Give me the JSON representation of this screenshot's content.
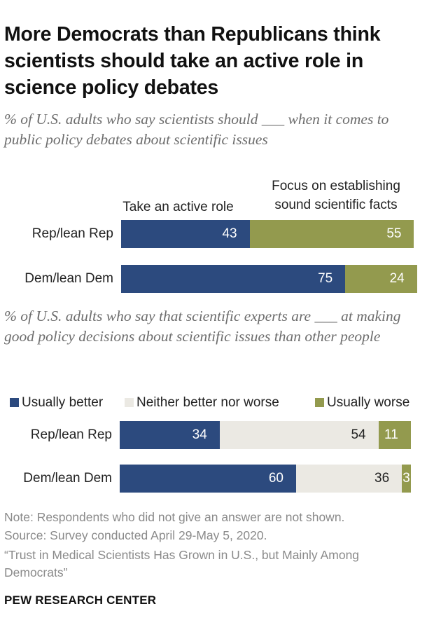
{
  "title": "More Democrats than Republicans think scientists should take an active role in science policy debates",
  "colors": {
    "rep_active": "#2c4a7e",
    "focus_facts": "#939a4e",
    "usually_better": "#2c4a7e",
    "neither": "#ebe9e3",
    "usually_worse": "#939a4e"
  },
  "chart_data": [
    {
      "type": "bar",
      "orientation": "horizontal",
      "stacked": true,
      "subtitle": "% of U.S. adults who say scientists should ___ when it comes to public policy debates about scientific issues",
      "categories": [
        "Rep/lean Rep",
        "Dem/lean Dem"
      ],
      "series": [
        {
          "name": "Take an active role",
          "values": [
            43,
            75
          ]
        },
        {
          "name": "Focus on establishing sound scientific facts",
          "values": [
            55,
            24
          ]
        }
      ],
      "xlim": [
        0,
        100
      ]
    },
    {
      "type": "bar",
      "orientation": "horizontal",
      "stacked": true,
      "subtitle": "% of U.S. adults who say that scientific experts are ___ at making good policy decisions about scientific issues than other people",
      "categories": [
        "Rep/lean Rep",
        "Dem/lean Dem"
      ],
      "series": [
        {
          "name": "Usually better",
          "values": [
            34,
            60
          ]
        },
        {
          "name": "Neither better nor worse",
          "values": [
            54,
            36
          ]
        },
        {
          "name": "Usually worse",
          "values": [
            11,
            3
          ]
        }
      ],
      "legend": "top",
      "xlim": [
        0,
        100
      ]
    }
  ],
  "notes": {
    "note": "Note: Respondents who did not give an answer are not shown.",
    "source": "Source: Survey conducted April 29-May 5, 2020.",
    "report": "“Trust in Medical Scientists Has Grown in U.S., but Mainly Among Democrats”"
  },
  "brand": "PEW RESEARCH CENTER"
}
